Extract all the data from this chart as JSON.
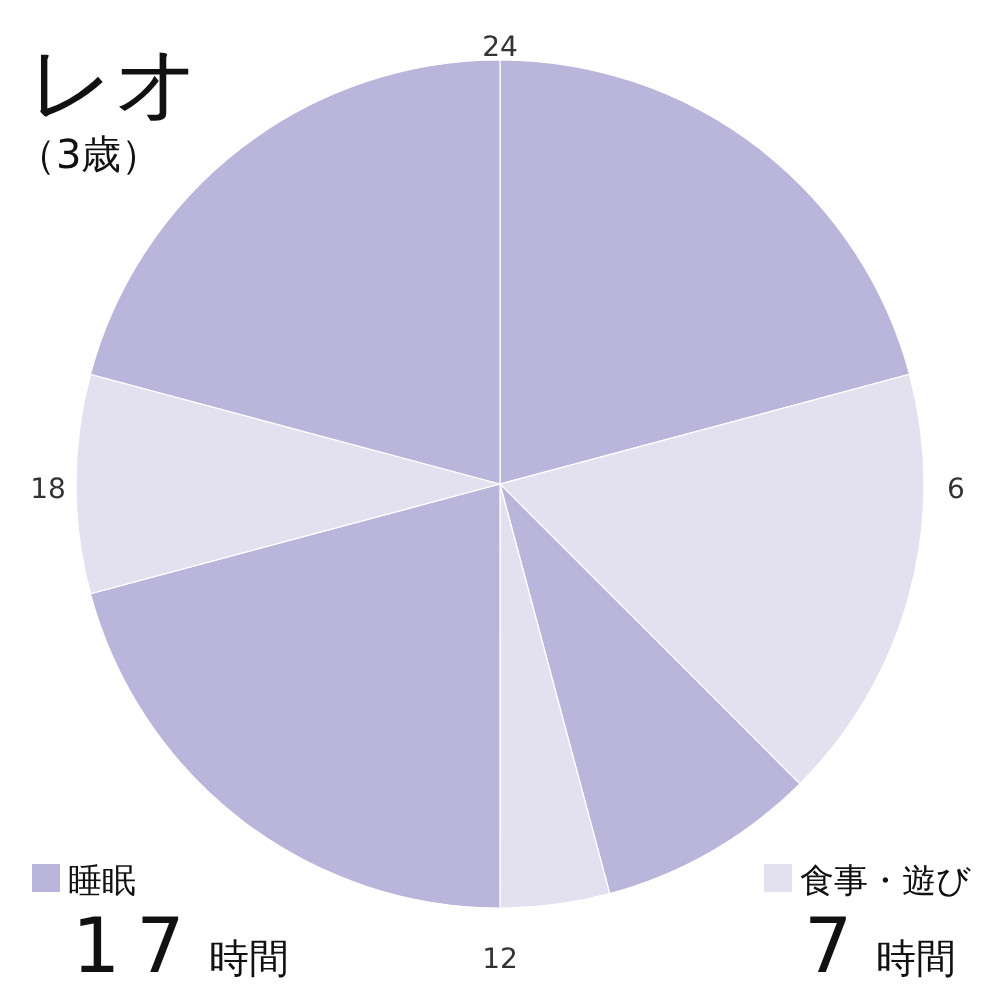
{
  "chart_data": {
    "type": "pie",
    "title": "レオ",
    "subtitle": "（3歳）",
    "categories": [
      "睡眠",
      "食事・遊び",
      null,
      null,
      null,
      null,
      null
    ],
    "values": [
      20.833,
      16.667,
      8.333,
      4.167,
      20.833,
      8.333,
      20.833
    ],
    "colors": [
      "#bab5db",
      "#e3e1f0",
      "#bab5db",
      "#e3e1f0",
      "#bab5db",
      "#e3e1f0",
      "#bab5db"
    ],
    "legend": "bottom",
    "annotations": [
      "24",
      "6",
      "12",
      "18",
      "17時間",
      "7時間"
    ]
  }
}
